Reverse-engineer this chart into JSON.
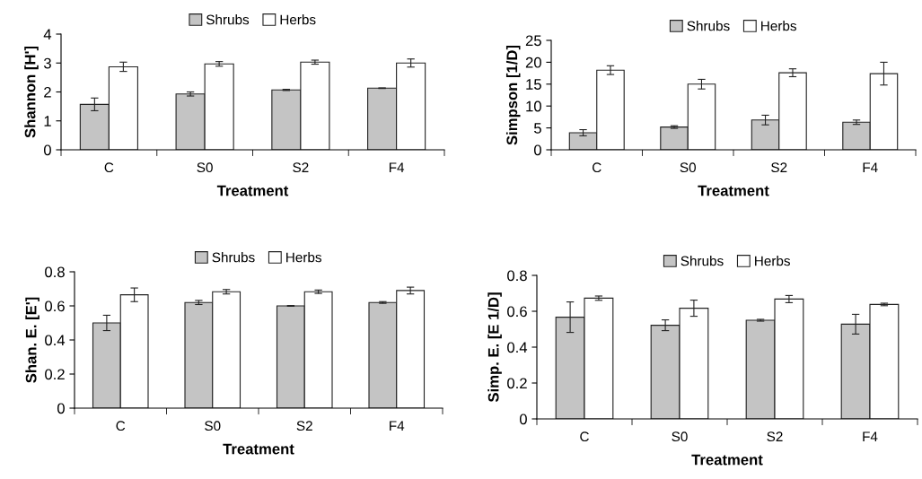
{
  "chart_data": [
    {
      "type": "bar",
      "ylabel": "Shannon [H']",
      "xlabel": "Treatment",
      "categories": [
        "C",
        "S0",
        "S2",
        "F4"
      ],
      "ylim": [
        0,
        4
      ],
      "yticks": [
        0,
        1,
        2,
        3,
        4
      ],
      "legend": "top",
      "grid": false,
      "series": [
        {
          "name": "Shrubs",
          "color": "#c4c4c4",
          "values": [
            1.57,
            1.93,
            2.07,
            2.13
          ],
          "errors": [
            0.22,
            0.07,
            0.02,
            0.01
          ]
        },
        {
          "name": "Herbs",
          "color": "#ffffff",
          "values": [
            2.87,
            2.97,
            3.03,
            3.0
          ],
          "errors": [
            0.16,
            0.08,
            0.07,
            0.14
          ]
        }
      ]
    },
    {
      "type": "bar",
      "ylabel": "Simpson [1/D]",
      "xlabel": "Treatment",
      "categories": [
        "C",
        "S0",
        "S2",
        "F4"
      ],
      "ylim": [
        0,
        25
      ],
      "yticks": [
        0,
        5,
        10,
        15,
        20,
        25
      ],
      "legend": "top",
      "grid": false,
      "series": [
        {
          "name": "Shrubs",
          "color": "#c4c4c4",
          "values": [
            3.9,
            5.2,
            6.8,
            6.3
          ],
          "errors": [
            0.7,
            0.3,
            1.1,
            0.5
          ]
        },
        {
          "name": "Herbs",
          "color": "#ffffff",
          "values": [
            18.2,
            15.0,
            17.6,
            17.4
          ],
          "errors": [
            1.0,
            1.1,
            0.9,
            2.6
          ]
        }
      ]
    },
    {
      "type": "bar",
      "ylabel": "Shan. E. [E']",
      "xlabel": "Treatment",
      "categories": [
        "C",
        "S0",
        "S2",
        "F4"
      ],
      "ylim": [
        0,
        0.8
      ],
      "yticks": [
        0,
        0.2,
        0.4,
        0.6,
        0.8
      ],
      "legend": "top",
      "grid": false,
      "series": [
        {
          "name": "Shrubs",
          "color": "#c4c4c4",
          "values": [
            0.5,
            0.62,
            0.6,
            0.62
          ],
          "errors": [
            0.045,
            0.012,
            0.002,
            0.005
          ]
        },
        {
          "name": "Herbs",
          "color": "#ffffff",
          "values": [
            0.665,
            0.683,
            0.683,
            0.69
          ],
          "errors": [
            0.04,
            0.013,
            0.01,
            0.02
          ]
        }
      ]
    },
    {
      "type": "bar",
      "ylabel": "Simp. E. [E 1/D]",
      "xlabel": "Treatment",
      "categories": [
        "C",
        "S0",
        "S2",
        "F4"
      ],
      "ylim": [
        0,
        0.8
      ],
      "yticks": [
        0,
        0.2,
        0.4,
        0.6,
        0.8
      ],
      "legend": "top",
      "grid": false,
      "series": [
        {
          "name": "Shrubs",
          "color": "#c4c4c4",
          "values": [
            0.567,
            0.522,
            0.55,
            0.528
          ],
          "errors": [
            0.085,
            0.03,
            0.005,
            0.055
          ]
        },
        {
          "name": "Herbs",
          "color": "#ffffff",
          "values": [
            0.673,
            0.617,
            0.668,
            0.638
          ],
          "errors": [
            0.012,
            0.045,
            0.02,
            0.007
          ]
        }
      ]
    }
  ]
}
